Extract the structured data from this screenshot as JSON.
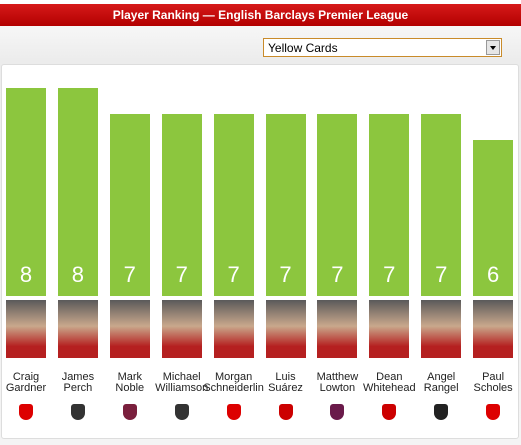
{
  "filter": {
    "selected": "Yellow Cards"
  },
  "chart_data": {
    "type": "bar",
    "title": "Player Ranking — English Barclays Premier League",
    "categories": [
      "Craig Gardner",
      "James Perch",
      "Mark Noble",
      "Michael Williamson",
      "Morgan Schneiderlin",
      "Luis Suárez",
      "Matthew Lowton",
      "Dean Whitehead",
      "Angel Rangel",
      "Paul Scholes"
    ],
    "values": [
      8,
      8,
      7,
      7,
      7,
      7,
      7,
      7,
      7,
      6
    ],
    "color": "#8cc63e"
  }
}
